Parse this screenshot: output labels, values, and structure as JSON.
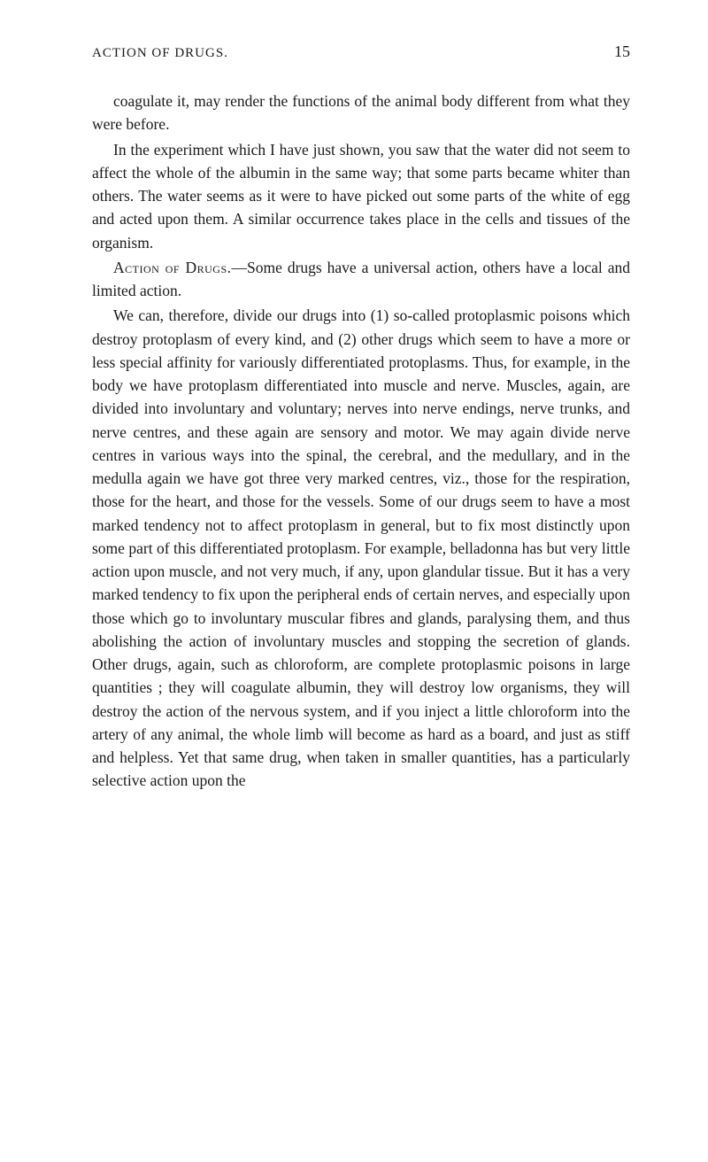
{
  "header": {
    "title": "ACTION OF DRUGS.",
    "page_number": "15"
  },
  "paragraphs": {
    "p1": "coagulate it, may render the functions of the animal body different from what they were before.",
    "p2": "In the experiment which I have just shown, you saw that the water did not seem to affect the whole of the albumin in the same way; that some parts became whiter than others. The water seems as it were to have picked out some parts of the white of egg and acted upon them. A similar occurrence takes place in the cells and tissues of the organism.",
    "p3_caps": "Action of Drugs.",
    "p3_rest": "—Some drugs have a universal action, others have a local and limited action.",
    "p4": "We can, therefore, divide our drugs into (1) so-called protoplasmic poisons which destroy protoplasm of every kind, and (2) other drugs which seem to have a more or less special affinity for variously differentiated protoplasms. Thus, for example, in the body we have protoplasm differentiated into muscle and nerve. Muscles, again, are divided into involuntary and voluntary; nerves into nerve endings, nerve trunks, and nerve centres, and these again are sensory and motor. We may again divide nerve centres in various ways into the spinal, the cerebral, and the medullary, and in the medulla again we have got three very marked centres, viz., those for the respiration, those for the heart, and those for the vessels. Some of our drugs seem to have a most marked tendency not to affect protoplasm in general, but to fix most distinctly upon some part of this differentiated protoplasm. For example, belladonna has but very little action upon muscle, and not very much, if any, upon glandular tissue. But it has a very marked tendency to fix upon the peripheral ends of certain nerves, and especially upon those which go to involuntary muscular fibres and glands, paralysing them, and thus abolishing the action of involuntary muscles and stopping the secretion of glands. Other drugs, again, such as chloroform, are complete protoplasmic poisons in large quantities ; they will coagulate albumin, they will destroy low organisms, they will destroy the action of the nervous system, and if you inject a little chloroform into the artery of any animal, the whole limb will become as hard as a board, and just as stiff and helpless. Yet that same drug, when taken in smaller quantities, has a particularly selective action upon the"
  },
  "colors": {
    "background": "#ffffff",
    "text": "#1a1a1a"
  },
  "typography": {
    "body_fontsize": 17.5,
    "header_fontsize": 15,
    "pagenum_fontsize": 18,
    "line_height": 1.5,
    "font_family": "Georgia, 'Times New Roman', serif"
  }
}
